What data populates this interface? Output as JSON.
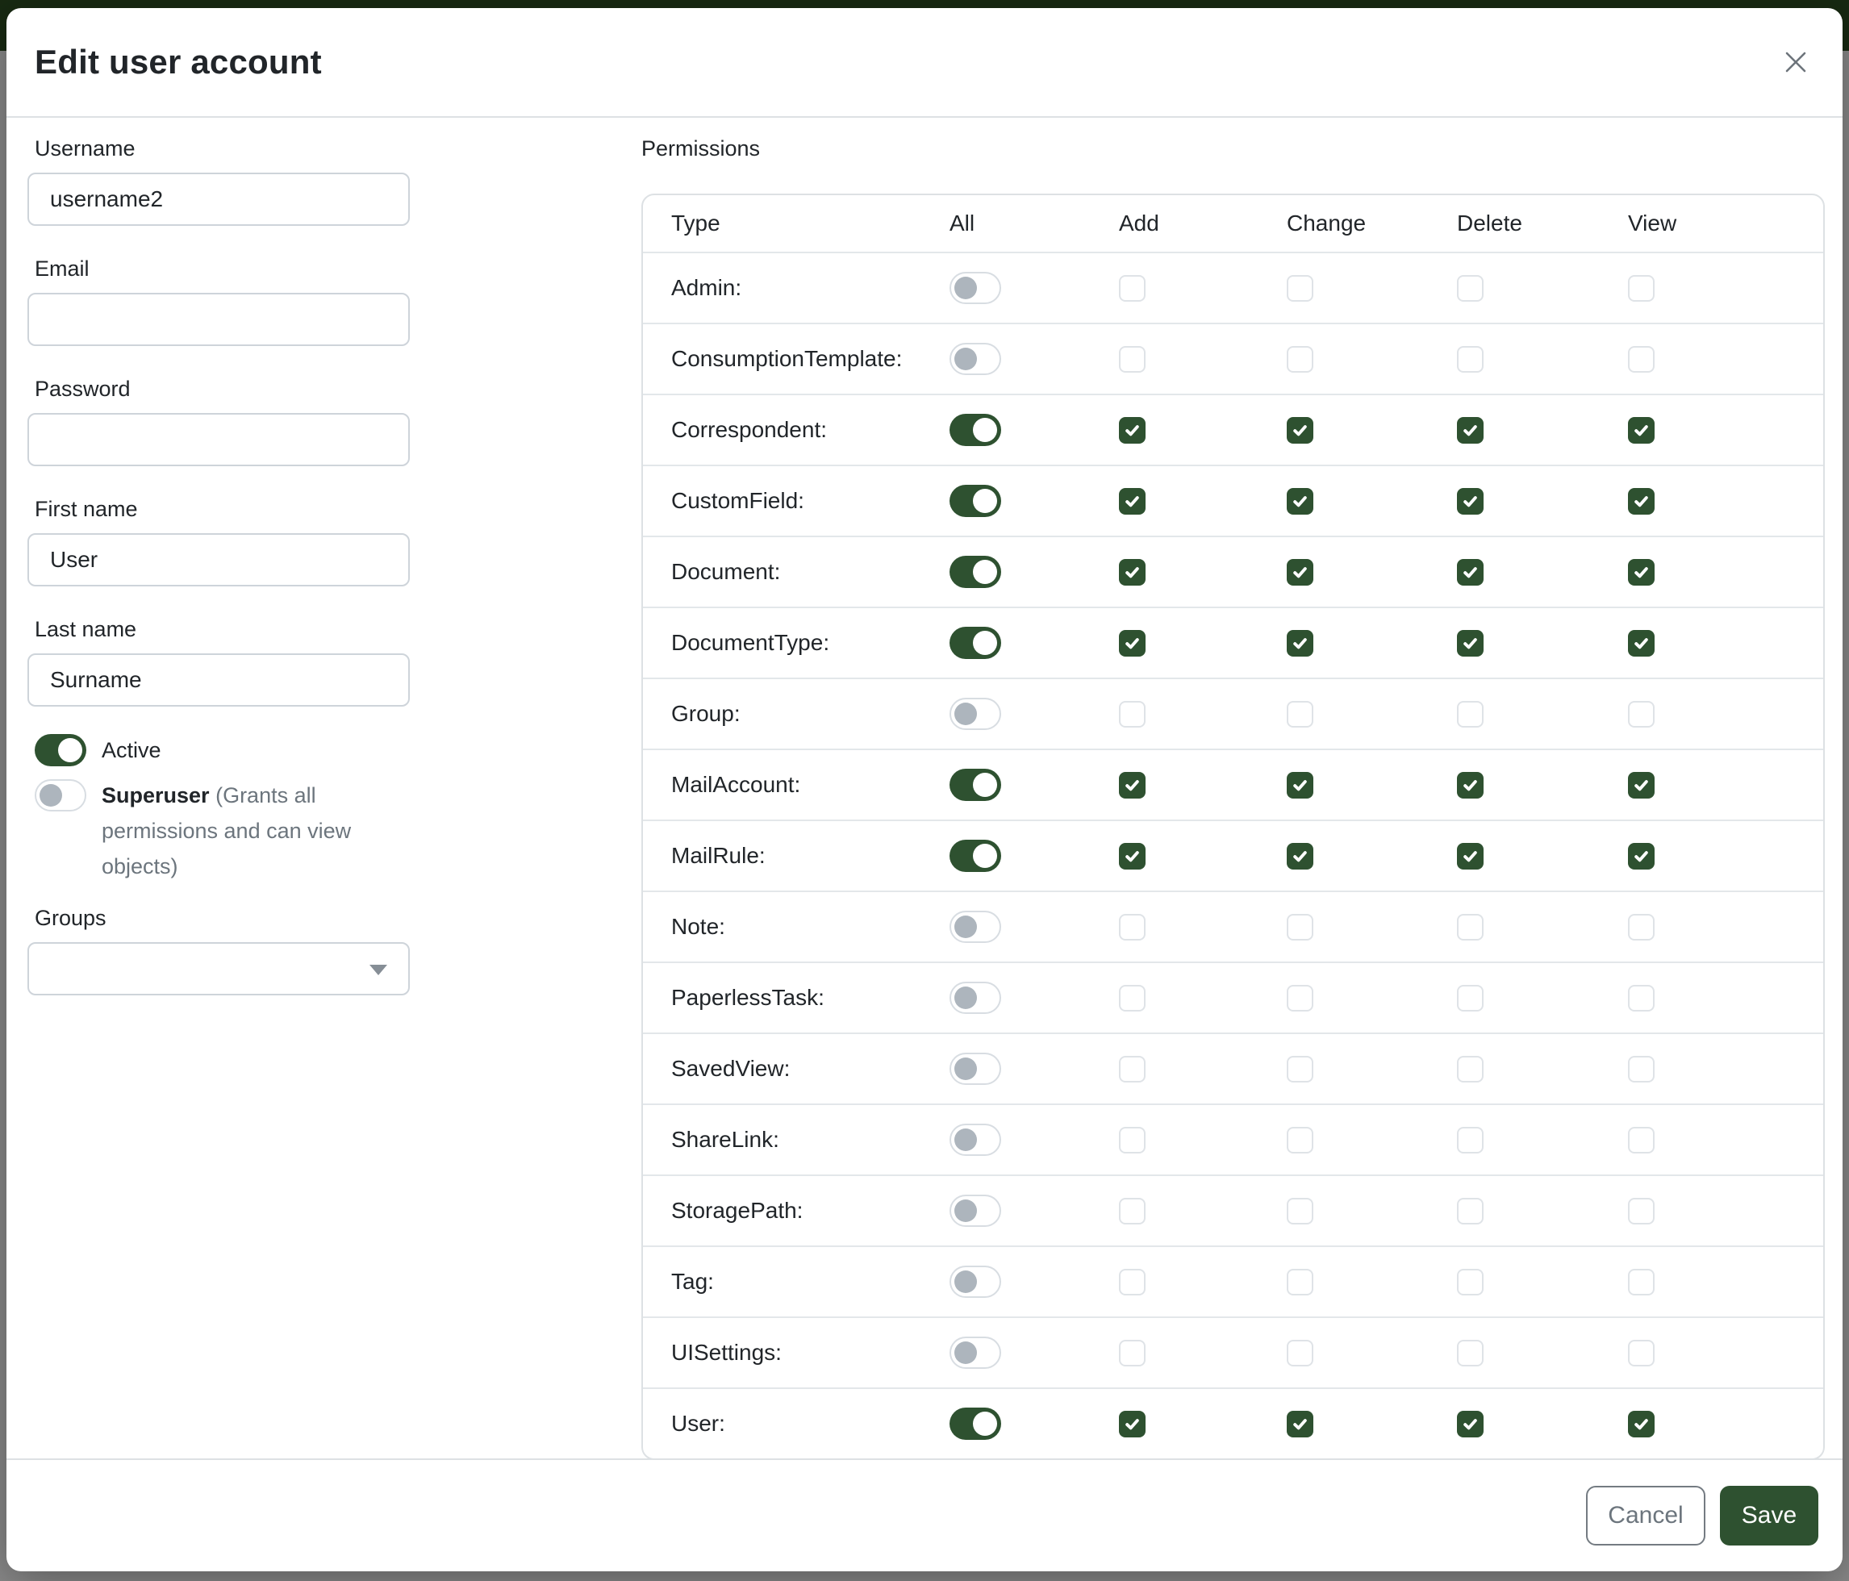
{
  "header": {
    "title": "Edit user account"
  },
  "form": {
    "username": {
      "label": "Username",
      "value": "username2"
    },
    "email": {
      "label": "Email",
      "value": ""
    },
    "password": {
      "label": "Password",
      "value": ""
    },
    "first_name": {
      "label": "First name",
      "value": "User"
    },
    "last_name": {
      "label": "Last name",
      "value": "Surname"
    },
    "active": {
      "label": "Active",
      "enabled": true
    },
    "superuser": {
      "label": "Superuser",
      "hint": "(Grants all permissions and can view objects)",
      "enabled": false
    },
    "groups": {
      "label": "Groups",
      "value": ""
    }
  },
  "permissions": {
    "section_label": "Permissions",
    "columns": [
      "Type",
      "All",
      "Add",
      "Change",
      "Delete",
      "View"
    ],
    "rows": [
      {
        "type": "Admin:",
        "all": false,
        "add": false,
        "change": false,
        "delete": false,
        "view": false
      },
      {
        "type": "ConsumptionTemplate:",
        "all": false,
        "add": false,
        "change": false,
        "delete": false,
        "view": false
      },
      {
        "type": "Correspondent:",
        "all": true,
        "add": true,
        "change": true,
        "delete": true,
        "view": true
      },
      {
        "type": "CustomField:",
        "all": true,
        "add": true,
        "change": true,
        "delete": true,
        "view": true
      },
      {
        "type": "Document:",
        "all": true,
        "add": true,
        "change": true,
        "delete": true,
        "view": true
      },
      {
        "type": "DocumentType:",
        "all": true,
        "add": true,
        "change": true,
        "delete": true,
        "view": true
      },
      {
        "type": "Group:",
        "all": false,
        "add": false,
        "change": false,
        "delete": false,
        "view": false
      },
      {
        "type": "MailAccount:",
        "all": true,
        "add": true,
        "change": true,
        "delete": true,
        "view": true
      },
      {
        "type": "MailRule:",
        "all": true,
        "add": true,
        "change": true,
        "delete": true,
        "view": true
      },
      {
        "type": "Note:",
        "all": false,
        "add": false,
        "change": false,
        "delete": false,
        "view": false
      },
      {
        "type": "PaperlessTask:",
        "all": false,
        "add": false,
        "change": false,
        "delete": false,
        "view": false
      },
      {
        "type": "SavedView:",
        "all": false,
        "add": false,
        "change": false,
        "delete": false,
        "view": false
      },
      {
        "type": "ShareLink:",
        "all": false,
        "add": false,
        "change": false,
        "delete": false,
        "view": false
      },
      {
        "type": "StoragePath:",
        "all": false,
        "add": false,
        "change": false,
        "delete": false,
        "view": false
      },
      {
        "type": "Tag:",
        "all": false,
        "add": false,
        "change": false,
        "delete": false,
        "view": false
      },
      {
        "type": "UISettings:",
        "all": false,
        "add": false,
        "change": false,
        "delete": false,
        "view": false
      },
      {
        "type": "User:",
        "all": true,
        "add": true,
        "change": true,
        "delete": true,
        "view": true
      }
    ]
  },
  "footer": {
    "cancel_label": "Cancel",
    "save_label": "Save"
  },
  "colors": {
    "primary": "#2e5130",
    "navbar": "#182a12",
    "border": "#dde1e4",
    "text": "#212529",
    "muted": "#6c757d",
    "backdrop": "#8a8a8a"
  }
}
